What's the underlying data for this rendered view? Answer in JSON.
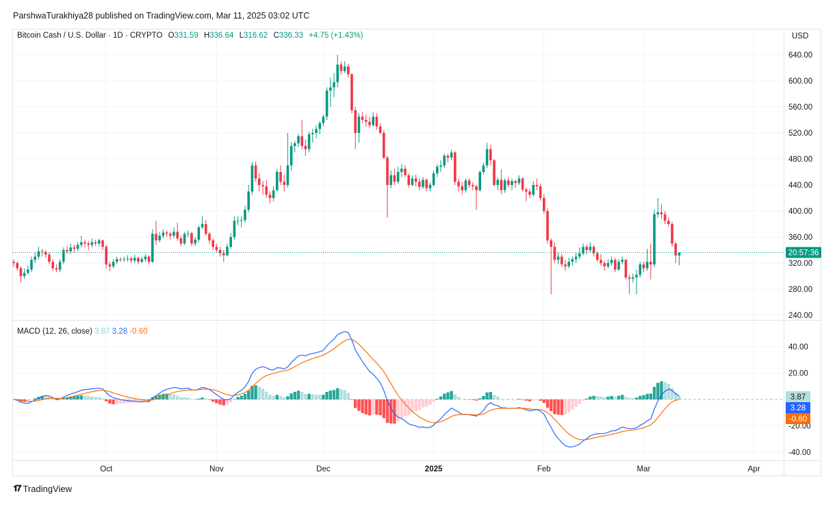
{
  "publication": "ParshwaTurakhiya28 published on TradingView.com, Mar 11, 2025 03:02 UTC",
  "legend": {
    "symbol": "Bitcoin Cash / U.S. Dollar · 1D · CRYPTO",
    "o_label": "O",
    "o": "331.59",
    "h_label": "H",
    "h": "336.64",
    "l_label": "L",
    "l": "316.62",
    "c_label": "C",
    "c": "336.33",
    "change": "+4.75 (+1.43%)"
  },
  "currency": "USD",
  "countdown": "20:57:36",
  "macd_legend": {
    "label": "MACD (12, 26, close)",
    "hist": "3.87",
    "macd": "3.28",
    "signal": "-0.60"
  },
  "logo": "TradingView",
  "colors": {
    "up": "#089981",
    "down": "#f23645",
    "macd": "#2962ff",
    "signal": "#ff6d00",
    "hist_up_strong": "#26a69a",
    "hist_up_weak": "#b2dfdb",
    "hist_down_strong": "#ff5252",
    "hist_down_weak": "#ffcdd2"
  },
  "chart_data": [
    {
      "type": "candlestick",
      "interval": "1D",
      "price_axis": {
        "ticks": [
          "640.00",
          "600.00",
          "560.00",
          "520.00",
          "480.00",
          "440.00",
          "400.00",
          "360.00",
          "320.00",
          "280.00",
          "240.00"
        ],
        "range": [
          240,
          640
        ]
      },
      "time_axis": {
        "ticks": [
          "Oct",
          "Nov",
          "Dec",
          "2025",
          "Feb",
          "Mar",
          "Apr"
        ]
      },
      "last_price": 336.33,
      "ohlc": [
        [
          322,
          326,
          314,
          320
        ],
        [
          320,
          323,
          308,
          312
        ],
        [
          312,
          315,
          290,
          300
        ],
        [
          300,
          312,
          296,
          305
        ],
        [
          305,
          316,
          302,
          310
        ],
        [
          310,
          330,
          306,
          325
        ],
        [
          325,
          336,
          320,
          330
        ],
        [
          330,
          345,
          326,
          338
        ],
        [
          338,
          342,
          330,
          337
        ],
        [
          337,
          340,
          328,
          333
        ],
        [
          333,
          336,
          318,
          322
        ],
        [
          322,
          326,
          308,
          312
        ],
        [
          312,
          318,
          306,
          310
        ],
        [
          310,
          326,
          306,
          322
        ],
        [
          322,
          344,
          318,
          340
        ],
        [
          340,
          346,
          334,
          338
        ],
        [
          338,
          350,
          334,
          344
        ],
        [
          344,
          348,
          336,
          342
        ],
        [
          342,
          352,
          338,
          348
        ],
        [
          348,
          362,
          344,
          352
        ],
        [
          352,
          356,
          344,
          350
        ],
        [
          350,
          354,
          340,
          348
        ],
        [
          348,
          358,
          344,
          352
        ],
        [
          352,
          356,
          346,
          350
        ],
        [
          350,
          358,
          345,
          355
        ],
        [
          355,
          356,
          340,
          345
        ],
        [
          345,
          348,
          312,
          318
        ],
        [
          318,
          322,
          308,
          315
        ],
        [
          315,
          326,
          312,
          322
        ],
        [
          322,
          330,
          318,
          326
        ],
        [
          326,
          329,
          322,
          325
        ],
        [
          325,
          330,
          322,
          326
        ],
        [
          326,
          332,
          322,
          327
        ],
        [
          327,
          330,
          320,
          324
        ],
        [
          324,
          333,
          320,
          328
        ],
        [
          328,
          330,
          318,
          322
        ],
        [
          322,
          330,
          320,
          326
        ],
        [
          326,
          334,
          322,
          330
        ],
        [
          330,
          332,
          318,
          322
        ],
        [
          322,
          372,
          320,
          365
        ],
        [
          365,
          385,
          348,
          355
        ],
        [
          355,
          368,
          352,
          362
        ],
        [
          362,
          372,
          358,
          367
        ],
        [
          367,
          370,
          360,
          365
        ],
        [
          365,
          368,
          356,
          362
        ],
        [
          362,
          375,
          358,
          368
        ],
        [
          368,
          382,
          354,
          358
        ],
        [
          358,
          362,
          346,
          350
        ],
        [
          350,
          368,
          348,
          365
        ],
        [
          365,
          370,
          360,
          366
        ],
        [
          366,
          368,
          346,
          350
        ],
        [
          350,
          360,
          346,
          356
        ],
        [
          356,
          378,
          352,
          375
        ],
        [
          375,
          392,
          372,
          380
        ],
        [
          380,
          386,
          362,
          365
        ],
        [
          365,
          368,
          350,
          355
        ],
        [
          355,
          358,
          340,
          345
        ],
        [
          345,
          350,
          336,
          340
        ],
        [
          340,
          345,
          330,
          335
        ],
        [
          335,
          340,
          322,
          332
        ],
        [
          332,
          350,
          330,
          345
        ],
        [
          345,
          366,
          342,
          360
        ],
        [
          360,
          392,
          356,
          385
        ],
        [
          385,
          392,
          378,
          385
        ],
        [
          385,
          392,
          375,
          386
        ],
        [
          386,
          408,
          382,
          402
        ],
        [
          402,
          440,
          398,
          430
        ],
        [
          430,
          475,
          425,
          470
        ],
        [
          470,
          476,
          445,
          450
        ],
        [
          450,
          458,
          430,
          440
        ],
        [
          440,
          446,
          425,
          438
        ],
        [
          438,
          448,
          420,
          425
        ],
        [
          425,
          430,
          412,
          420
        ],
        [
          420,
          438,
          415,
          432
        ],
        [
          432,
          465,
          430,
          460
        ],
        [
          460,
          470,
          440,
          445
        ],
        [
          445,
          456,
          430,
          440
        ],
        [
          440,
          520,
          436,
          470
        ],
        [
          470,
          506,
          462,
          500
        ],
        [
          500,
          508,
          490,
          504
        ],
        [
          504,
          518,
          498,
          515
        ],
        [
          515,
          540,
          495,
          500
        ],
        [
          500,
          510,
          485,
          495
        ],
        [
          495,
          522,
          490,
          518
        ],
        [
          518,
          526,
          505,
          520
        ],
        [
          520,
          532,
          512,
          526
        ],
        [
          526,
          538,
          518,
          535
        ],
        [
          535,
          548,
          530,
          545
        ],
        [
          545,
          590,
          540,
          585
        ],
        [
          585,
          605,
          560,
          590
        ],
        [
          590,
          612,
          575,
          598
        ],
        [
          598,
          640,
          590,
          625
        ],
        [
          625,
          630,
          610,
          615
        ],
        [
          615,
          630,
          612,
          622
        ],
        [
          622,
          626,
          605,
          610
        ],
        [
          610,
          612,
          550,
          555
        ],
        [
          555,
          560,
          495,
          520
        ],
        [
          520,
          550,
          505,
          545
        ],
        [
          545,
          552,
          535,
          540
        ],
        [
          540,
          548,
          530,
          537
        ],
        [
          537,
          545,
          528,
          532
        ],
        [
          532,
          552,
          530,
          545
        ],
        [
          545,
          550,
          525,
          530
        ],
        [
          530,
          535,
          518,
          520
        ],
        [
          520,
          524,
          480,
          482
        ],
        [
          482,
          485,
          390,
          440
        ],
        [
          440,
          462,
          435,
          455
        ],
        [
          455,
          465,
          440,
          445
        ],
        [
          445,
          468,
          442,
          460
        ],
        [
          460,
          472,
          452,
          465
        ],
        [
          465,
          470,
          452,
          455
        ],
        [
          455,
          458,
          436,
          440
        ],
        [
          440,
          455,
          438,
          450
        ],
        [
          450,
          456,
          438,
          445
        ],
        [
          445,
          450,
          432,
          437
        ],
        [
          437,
          452,
          434,
          448
        ],
        [
          448,
          450,
          430,
          435
        ],
        [
          435,
          444,
          430,
          440
        ],
        [
          440,
          462,
          438,
          458
        ],
        [
          458,
          472,
          452,
          468
        ],
        [
          468,
          478,
          460,
          470
        ],
        [
          470,
          488,
          466,
          485
        ],
        [
          485,
          488,
          475,
          482
        ],
        [
          482,
          494,
          478,
          490
        ],
        [
          490,
          492,
          440,
          445
        ],
        [
          445,
          450,
          430,
          438
        ],
        [
          438,
          445,
          425,
          432
        ],
        [
          432,
          450,
          428,
          447
        ],
        [
          447,
          450,
          436,
          440
        ],
        [
          440,
          444,
          432,
          438
        ],
        [
          438,
          440,
          402,
          432
        ],
        [
          432,
          462,
          430,
          460
        ],
        [
          460,
          474,
          456,
          470
        ],
        [
          470,
          505,
          466,
          495
        ],
        [
          495,
          502,
          470,
          478
        ],
        [
          478,
          480,
          438,
          440
        ],
        [
          440,
          452,
          432,
          448
        ],
        [
          448,
          464,
          426,
          432
        ],
        [
          432,
          450,
          428,
          447
        ],
        [
          447,
          452,
          436,
          440
        ],
        [
          440,
          450,
          432,
          446
        ],
        [
          446,
          448,
          435,
          443
        ],
        [
          443,
          455,
          440,
          450
        ],
        [
          450,
          452,
          430,
          433
        ],
        [
          433,
          436,
          415,
          430
        ],
        [
          430,
          434,
          420,
          425
        ],
        [
          425,
          446,
          422,
          440
        ],
        [
          440,
          450,
          432,
          438
        ],
        [
          438,
          442,
          416,
          420
        ],
        [
          420,
          426,
          396,
          400
        ],
        [
          400,
          404,
          350,
          355
        ],
        [
          355,
          358,
          272,
          345
        ],
        [
          345,
          352,
          320,
          325
        ],
        [
          325,
          336,
          318,
          330
        ],
        [
          330,
          334,
          314,
          318
        ],
        [
          318,
          325,
          308,
          315
        ],
        [
          315,
          328,
          312,
          322
        ],
        [
          322,
          330,
          316,
          326
        ],
        [
          326,
          336,
          320,
          330
        ],
        [
          330,
          344,
          326,
          335
        ],
        [
          335,
          350,
          332,
          345
        ],
        [
          345,
          348,
          334,
          340
        ],
        [
          340,
          352,
          336,
          345
        ],
        [
          345,
          348,
          330,
          335
        ],
        [
          335,
          338,
          322,
          325
        ],
        [
          325,
          334,
          316,
          320
        ],
        [
          320,
          324,
          308,
          315
        ],
        [
          315,
          326,
          312,
          320
        ],
        [
          320,
          330,
          316,
          325
        ],
        [
          325,
          328,
          306,
          310
        ],
        [
          310,
          326,
          308,
          322
        ],
        [
          322,
          330,
          318,
          325
        ],
        [
          325,
          326,
          295,
          298
        ],
        [
          298,
          302,
          272,
          296
        ],
        [
          296,
          304,
          290,
          298
        ],
        [
          298,
          310,
          272,
          302
        ],
        [
          302,
          322,
          298,
          318
        ],
        [
          318,
          322,
          306,
          312
        ],
        [
          312,
          342,
          308,
          322
        ],
        [
          322,
          350,
          295,
          318
        ],
        [
          318,
          402,
          314,
          395
        ],
        [
          395,
          420,
          390,
          398
        ],
        [
          398,
          410,
          388,
          395
        ],
        [
          395,
          400,
          380,
          385
        ],
        [
          385,
          390,
          376,
          380
        ],
        [
          380,
          384,
          345,
          350
        ],
        [
          350,
          352,
          320,
          331.59
        ],
        [
          331.59,
          336.64,
          316.62,
          336.33
        ]
      ]
    },
    {
      "type": "line",
      "title": "MACD (12, 26, close)",
      "indicator": {
        "fast": 12,
        "slow": 26,
        "source": "close"
      },
      "axis": {
        "ticks": [
          "40.00",
          "20.00",
          "-20.00",
          "-40.00"
        ],
        "range": [
          -40,
          40
        ]
      },
      "last_values": {
        "histogram": 3.87,
        "macd": 3.28,
        "signal": -0.6
      }
    }
  ]
}
